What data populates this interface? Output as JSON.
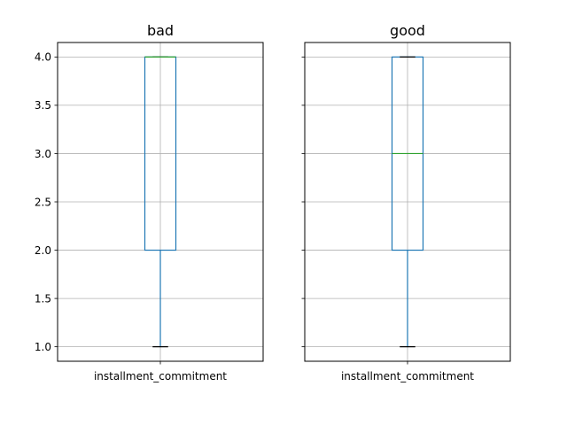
{
  "chart_data": [
    {
      "type": "box",
      "title": "bad",
      "categories": [
        "installment_commitment"
      ],
      "ylim": [
        0.85,
        4.15
      ],
      "yticks": [
        "1.0",
        "1.5",
        "2.0",
        "2.5",
        "3.0",
        "3.5",
        "4.0"
      ],
      "grid": true,
      "box": {
        "whisker_low": 1.0,
        "q1": 2.0,
        "median": 4.0,
        "q3": 4.0,
        "whisker_high": 4.0
      }
    },
    {
      "type": "box",
      "title": "good",
      "categories": [
        "installment_commitment"
      ],
      "ylim": [
        0.85,
        4.15
      ],
      "yticks": [
        "1.0",
        "1.5",
        "2.0",
        "2.5",
        "3.0",
        "3.5",
        "4.0"
      ],
      "grid": true,
      "box": {
        "whisker_low": 1.0,
        "q1": 2.0,
        "median": 3.0,
        "q3": 4.0,
        "whisker_high": 4.0
      }
    }
  ],
  "colors": {
    "box": "#1f77b4",
    "median": "#2ca02c",
    "cap": "#000000",
    "grid": "#b0b0b0",
    "axis": "#000000"
  }
}
